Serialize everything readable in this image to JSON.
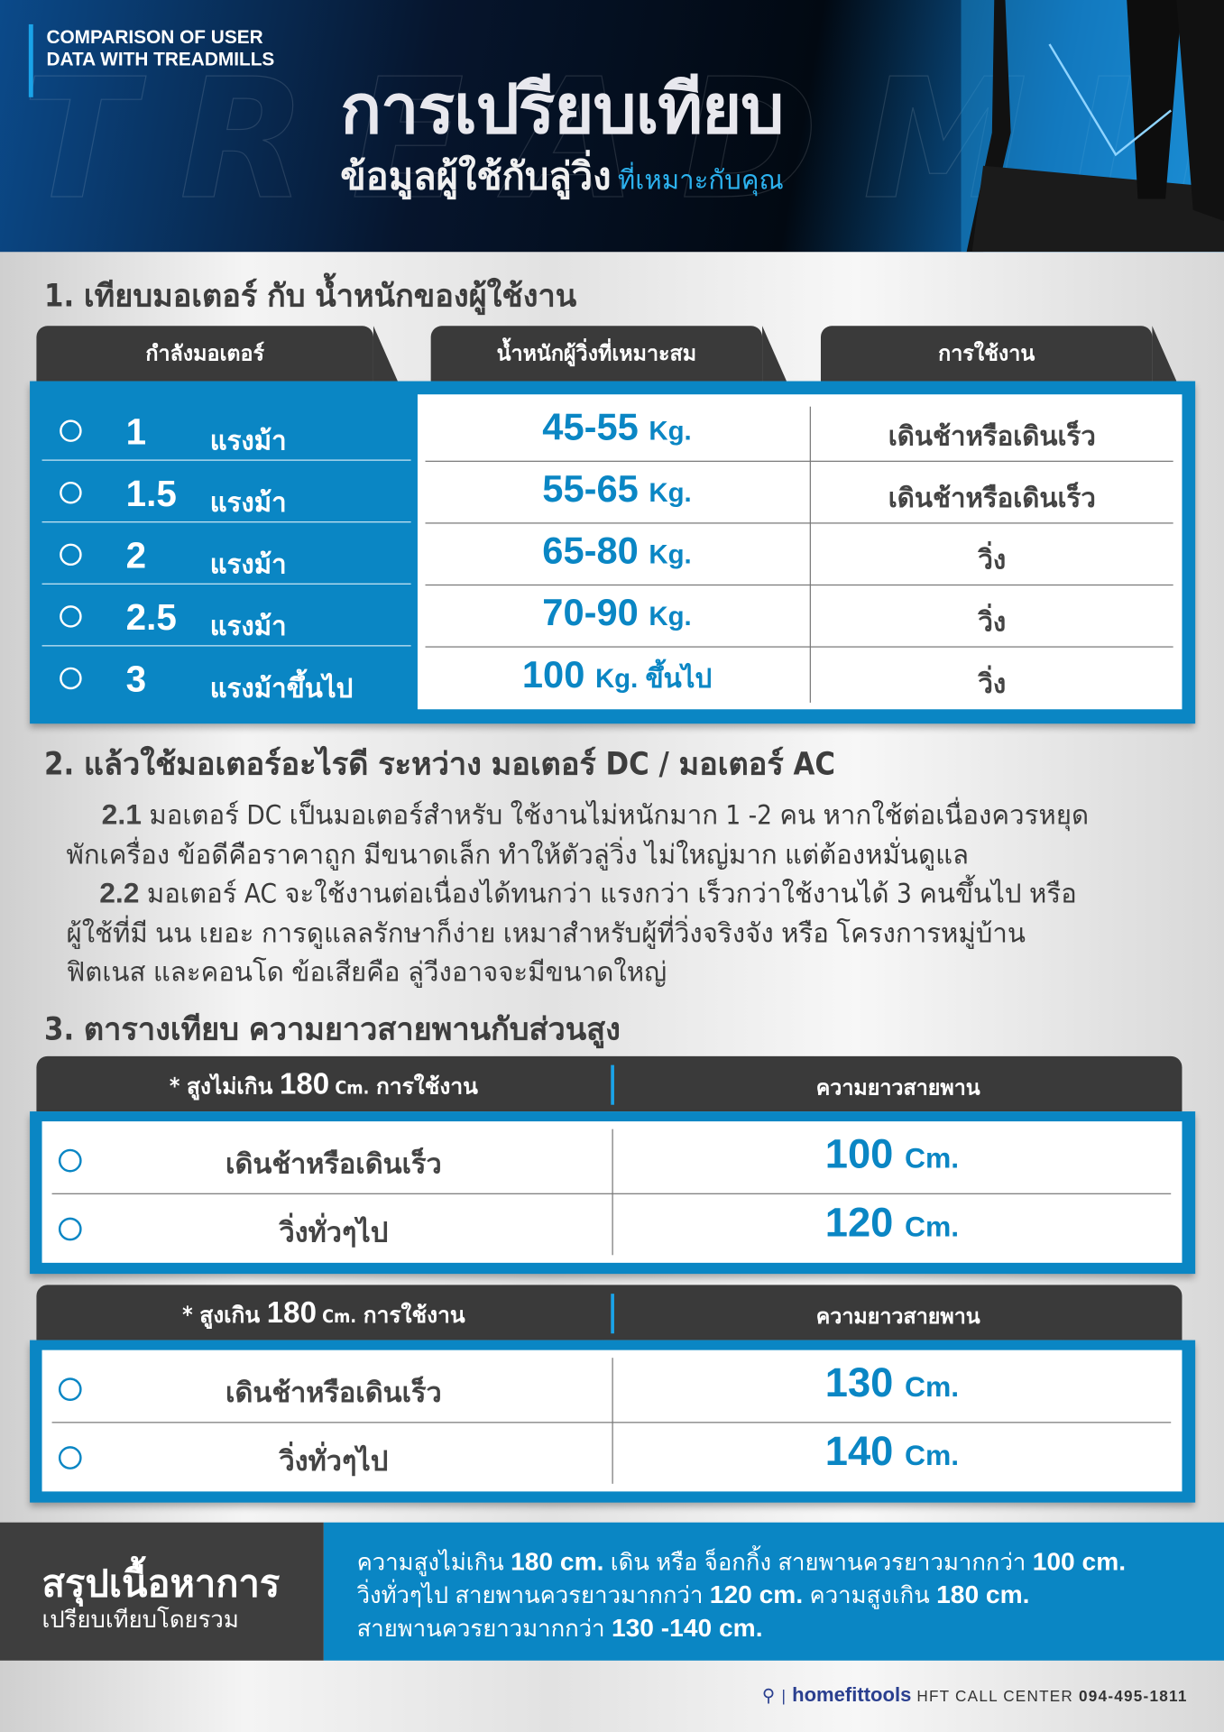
{
  "banner": {
    "english": "COMPARISON OF USER DATA WITH TREADMILLS",
    "title": "การเปรียบเทียบ",
    "subtitle": "ข้อมูลผู้ใช้กับลู่วิ่ง",
    "subtitle_accent": "ที่เหมาะกับคุณ"
  },
  "section1": {
    "title": "1. เทียบมอเตอร์  กับ น้ำหนักของผู้ใช้งาน",
    "headers": [
      "กำลังมอเตอร์",
      "น้ำหนักผู้วิ่งที่เหมาะสม",
      "การใช้งาน"
    ],
    "rows": [
      {
        "hp": "1",
        "unit": "แรงม้า",
        "weight": "45-55",
        "kg": "Kg.",
        "use": "เดินช้าหรือเดินเร็ว"
      },
      {
        "hp": "1.5",
        "unit": "แรงม้า",
        "weight": "55-65",
        "kg": "Kg.",
        "use": "เดินช้าหรือเดินเร็ว"
      },
      {
        "hp": "2",
        "unit": "แรงม้า",
        "weight": "65-80",
        "kg": "Kg.",
        "use": "วิ่ง"
      },
      {
        "hp": "2.5",
        "unit": "แรงม้า",
        "weight": "70-90",
        "kg": "Kg.",
        "use": "วิ่ง"
      },
      {
        "hp": "3",
        "unit": "แรงม้าขึ้นไป",
        "weight": "100",
        "kg": "Kg. ขึ้นไป",
        "use": "วิ่ง"
      }
    ]
  },
  "section2": {
    "title": "2. แล้วใช้มอเตอร์อะไรดี ระหว่าง มอเตอร์ DC / มอเตอร์ AC",
    "p1_num": "2.1",
    "p1_line1": " มอเตอร์ DC  เป็นมอเตอร์สำหรับ ใช้งานไม่หนักมาก 1 -2 คน หากใช้ต่อเนื่องควรหยุด",
    "p1_line2": "พักเครื่อง ข้อดีคือราคาถูก มีขนาดเล็ก ทำให้ตัวลู่วิ่ง ไม่ใหญ่มาก แต่ต้องหมั่นดูแล",
    "p2_num": "2.2",
    "p2_line1": " มอเตอร์ AC จะใช้งานต่อเนื่องได้ทนกว่า   แรงกว่า เร็วกว่าใช้งานได้ 3 คนขึ้นไป หรือ",
    "p2_line2": "ผู้ใช้ที่มี นน เยอะ การดูแลลรักษาก็ง่าย เหมาสำหรับผู้ที่วิ่งจริงจัง หรือ โครงการหมู่บ้าน",
    "p2_line3": "ฟิตเนส และคอนโด ข้อเสียคือ ลู่วีงอาจจะมีขนาดใหญ่"
  },
  "section3": {
    "title": "3. ตารางเทียบ ความยาวสายพานกับส่วนสูง",
    "tables": [
      {
        "h_pre": "* สูงไม่เกิน ",
        "h_num": "180",
        "h_unit": " Cm.",
        "h_post": " การใช้งาน",
        "h_right": "ความยาวสายพาน",
        "rows": [
          {
            "use": "เดินช้าหรือเดินเร็ว",
            "len": "100",
            "unit": "Cm."
          },
          {
            "use": "วิ่งทั่วๆไป",
            "len": "120",
            "unit": "Cm."
          }
        ]
      },
      {
        "h_pre": "* สูงเกิน ",
        "h_num": "180",
        "h_unit": " Cm.",
        "h_post": " การใช้งาน",
        "h_right": "ความยาวสายพาน",
        "rows": [
          {
            "use": "เดินช้าหรือเดินเร็ว",
            "len": "130",
            "unit": "Cm."
          },
          {
            "use": "วิ่งทั่วๆไป",
            "len": "140",
            "unit": "Cm."
          }
        ]
      }
    ]
  },
  "summary": {
    "title": "สรุปเนื้อหาการ",
    "subtitle": "เปรียบเทียบโดยรวม",
    "l1a": "ความสูงไม่เกิน ",
    "l1b": "180 cm.",
    "l1c": " เดิน หรือ จ็อกกิ้ง สายพานควรยาวมากกว่า ",
    "l1d": "100 cm.",
    "l2a": "วิ่งทั่วๆไป  สายพานควรยาวมากกว่า ",
    "l2b": "120 cm.",
    "l2c": " ความสูงเกิน ",
    "l2d": "180 cm.",
    "l3a": "สายพานควรยาวมากกว่า ",
    "l3b": "130 -140 cm."
  },
  "footer": {
    "brand": "homefittools",
    "call": "HFT CALL CENTER",
    "phone": "094-495-1811"
  },
  "colors": {
    "accent": "#0a86c4",
    "dark": "#3a3a3a"
  }
}
